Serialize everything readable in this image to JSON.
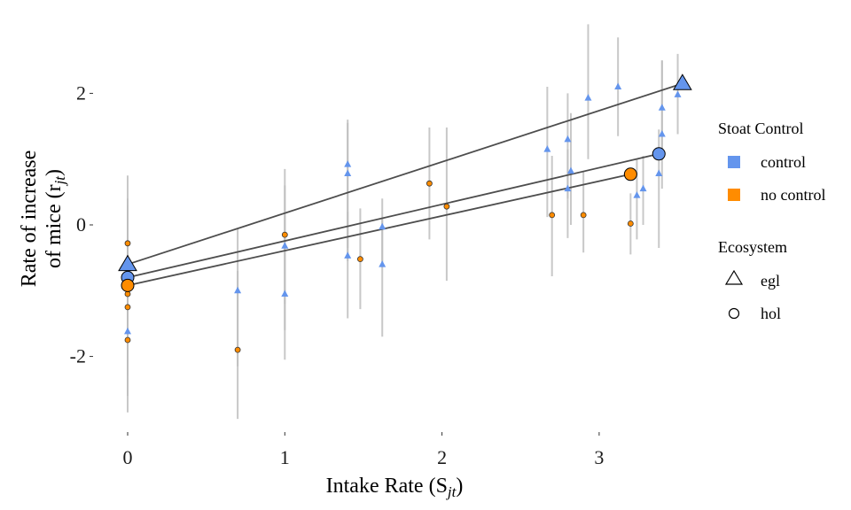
{
  "chart_data": {
    "type": "scatter",
    "xlabel": "Intake Rate (S",
    "xlabel_sub": "jt",
    "xlabel_end": ")",
    "ylabel_line1": "Rate of increase",
    "ylabel_line2": "of mice (r",
    "ylabel_sub": "jt",
    "ylabel_end": ")",
    "xlim": [
      -0.22,
      3.7
    ],
    "ylim": [
      -3.15,
      3.15
    ],
    "x_ticks": [
      0,
      1,
      2,
      3
    ],
    "x_tick_labels": [
      "0",
      "1",
      "2",
      "3"
    ],
    "y_ticks": [
      -2,
      0,
      2
    ],
    "y_tick_labels": [
      "-2",
      "0",
      "2"
    ],
    "grid": false,
    "colors": {
      "control": "#6495ED",
      "no control": "#FF8C00",
      "errorbar": "#bfbfbf",
      "line": "#4d4d4d"
    },
    "legend": {
      "placement": "right",
      "fill_title": "Stoat Control",
      "fill_items": [
        {
          "label": "control",
          "color": "#6495ED"
        },
        {
          "label": "no control",
          "color": "#FF8C00"
        }
      ],
      "shape_title": "Ecosystem",
      "shape_items": [
        {
          "label": "egl",
          "shape": "triangle"
        },
        {
          "label": "hol",
          "shape": "circle"
        }
      ]
    },
    "points": [
      {
        "x": 0.0,
        "y": -1.62,
        "lo": -2.85,
        "hi": -0.35,
        "group": "control",
        "shape": "triangle"
      },
      {
        "x": 0.0,
        "y": -1.75,
        "lo": -2.6,
        "hi": 0.4,
        "group": "no control",
        "shape": "circle"
      },
      {
        "x": 0.0,
        "y": -1.25,
        "lo": -2.3,
        "hi": 0.75,
        "group": "no control",
        "shape": "circle"
      },
      {
        "x": 0.0,
        "y": -1.05,
        "lo": -2.0,
        "hi": 0.3,
        "group": "no control",
        "shape": "circle"
      },
      {
        "x": 0.0,
        "y": -0.28,
        "lo": -1.2,
        "hi": 0.2,
        "group": "no control",
        "shape": "circle"
      },
      {
        "x": 0.7,
        "y": -1.0,
        "lo": -2.15,
        "hi": -0.05,
        "group": "control",
        "shape": "triangle"
      },
      {
        "x": 0.7,
        "y": -1.9,
        "lo": -2.95,
        "hi": -0.7,
        "group": "no control",
        "shape": "circle"
      },
      {
        "x": 1.0,
        "y": -1.05,
        "lo": -2.05,
        "hi": 0.15,
        "group": "control",
        "shape": "triangle"
      },
      {
        "x": 1.0,
        "y": -0.32,
        "lo": -1.6,
        "hi": 0.85,
        "group": "control",
        "shape": "triangle"
      },
      {
        "x": 1.0,
        "y": -0.15,
        "lo": -1.2,
        "hi": 0.6,
        "group": "no control",
        "shape": "circle"
      },
      {
        "x": 1.4,
        "y": 0.92,
        "lo": -0.35,
        "hi": 1.6,
        "group": "control",
        "shape": "triangle"
      },
      {
        "x": 1.4,
        "y": 0.78,
        "lo": -0.55,
        "hi": 1.55,
        "group": "control",
        "shape": "triangle"
      },
      {
        "x": 1.4,
        "y": -0.47,
        "lo": -1.42,
        "hi": 0.2,
        "group": "control",
        "shape": "triangle"
      },
      {
        "x": 1.48,
        "y": -0.52,
        "lo": -1.28,
        "hi": 0.25,
        "group": "no control",
        "shape": "circle"
      },
      {
        "x": 1.62,
        "y": -0.03,
        "lo": -0.65,
        "hi": 0.4,
        "group": "control",
        "shape": "triangle"
      },
      {
        "x": 1.62,
        "y": -0.6,
        "lo": -1.7,
        "hi": 0.1,
        "group": "control",
        "shape": "triangle"
      },
      {
        "x": 1.92,
        "y": 0.63,
        "lo": -0.22,
        "hi": 1.48,
        "group": "no control",
        "shape": "circle"
      },
      {
        "x": 2.03,
        "y": 0.28,
        "lo": -0.85,
        "hi": 1.48,
        "group": "no control",
        "shape": "circle"
      },
      {
        "x": 2.67,
        "y": 1.15,
        "lo": 0.12,
        "hi": 2.1,
        "group": "control",
        "shape": "triangle"
      },
      {
        "x": 2.7,
        "y": 0.15,
        "lo": -0.78,
        "hi": 1.05,
        "group": "no control",
        "shape": "circle"
      },
      {
        "x": 2.8,
        "y": 1.3,
        "lo": 0.4,
        "hi": 2.0,
        "group": "control",
        "shape": "triangle"
      },
      {
        "x": 2.8,
        "y": 0.55,
        "lo": -0.2,
        "hi": 1.15,
        "group": "control",
        "shape": "triangle"
      },
      {
        "x": 2.82,
        "y": 0.82,
        "lo": 0.0,
        "hi": 1.7,
        "group": "control",
        "shape": "triangle"
      },
      {
        "x": 2.9,
        "y": 0.15,
        "lo": -0.42,
        "hi": 0.82,
        "group": "no control",
        "shape": "circle"
      },
      {
        "x": 2.93,
        "y": 1.93,
        "lo": 1.0,
        "hi": 3.05,
        "group": "control",
        "shape": "triangle"
      },
      {
        "x": 3.12,
        "y": 2.1,
        "lo": 1.35,
        "hi": 2.85,
        "group": "control",
        "shape": "triangle"
      },
      {
        "x": 3.2,
        "y": 0.02,
        "lo": -0.45,
        "hi": 0.48,
        "group": "no control",
        "shape": "circle"
      },
      {
        "x": 3.24,
        "y": 0.45,
        "lo": -0.22,
        "hi": 1.0,
        "group": "control",
        "shape": "triangle"
      },
      {
        "x": 3.28,
        "y": 0.55,
        "lo": 0.0,
        "hi": 1.05,
        "group": "control",
        "shape": "triangle"
      },
      {
        "x": 3.38,
        "y": 0.78,
        "lo": -0.35,
        "hi": 1.45,
        "group": "control",
        "shape": "triangle"
      },
      {
        "x": 3.4,
        "y": 1.38,
        "lo": 0.55,
        "hi": 2.5,
        "group": "control",
        "shape": "triangle"
      },
      {
        "x": 3.4,
        "y": 1.78,
        "lo": 1.0,
        "hi": 2.5,
        "group": "control",
        "shape": "triangle"
      },
      {
        "x": 3.5,
        "y": 1.98,
        "lo": 1.38,
        "hi": 2.6,
        "group": "control",
        "shape": "triangle"
      }
    ],
    "fit_lines": [
      {
        "group": "control",
        "shape": "triangle",
        "x": [
          0.0,
          3.53
        ],
        "y": [
          -0.6,
          2.15
        ]
      },
      {
        "group": "control",
        "shape": "circle",
        "x": [
          0.0,
          3.38
        ],
        "y": [
          -0.8,
          1.08
        ]
      },
      {
        "group": "no control",
        "shape": "circle",
        "x": [
          0.0,
          3.2
        ],
        "y": [
          -0.92,
          0.77
        ]
      }
    ]
  }
}
